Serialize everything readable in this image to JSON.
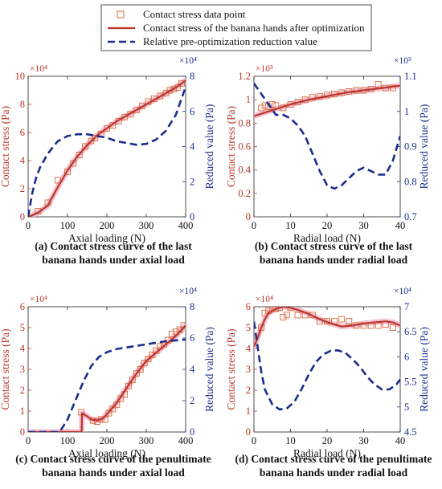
{
  "colors": {
    "stress": "#b8352c",
    "stress_scatter": "#d8653c",
    "highlight": "#f2b3c6",
    "reduced": "#1b2d8c",
    "axis": "#222222"
  },
  "legend": {
    "items": [
      {
        "label": "Contact stress data point",
        "style": "square-marker"
      },
      {
        "label": "Contact stress of the banana hands after optimization",
        "style": "solid-line"
      },
      {
        "label": "Relative pre-optimization reduction value",
        "style": "dashed-line"
      }
    ]
  },
  "chart_data": [
    {
      "id": "a",
      "type": "line",
      "caption_lines": [
        "(a)  Contact stress curve of the last",
        "banana hands under axial load"
      ],
      "xlabel": "Axial loading  (N)",
      "ylabel_left": "Contact stress (Pa)",
      "ylabel_right": "Reduced value (Pa)",
      "exp_left": "×10⁴",
      "exp_right": "×10⁴",
      "xlim": [
        0,
        400
      ],
      "xticks": [
        0,
        100,
        200,
        300,
        400
      ],
      "ylim_left": [
        0,
        10
      ],
      "yticks_left": [
        0,
        2,
        4,
        6,
        8,
        10
      ],
      "ylim_right": [
        0,
        8
      ],
      "yticks_right": [
        0,
        2,
        4,
        6,
        8
      ],
      "scatter": {
        "x": [
          25,
          50,
          75,
          100,
          115,
          130,
          145,
          160,
          170,
          185,
          200,
          215,
          230,
          245,
          260,
          275,
          290,
          305,
          320,
          335,
          350,
          360,
          370,
          380,
          390
        ],
        "y": [
          0.4,
          1.0,
          2.6,
          3.2,
          3.8,
          4.4,
          5.0,
          5.4,
          5.6,
          5.9,
          6.3,
          6.5,
          6.8,
          7.1,
          7.3,
          7.6,
          7.9,
          8.2,
          8.4,
          8.6,
          8.8,
          9.0,
          9.1,
          9.2,
          9.5
        ]
      },
      "stress_curve": {
        "x": [
          0,
          10,
          25,
          50,
          75,
          100,
          125,
          150,
          175,
          200,
          225,
          250,
          275,
          300,
          325,
          350,
          375,
          400
        ],
        "y": [
          0,
          0.1,
          0.3,
          0.8,
          2.1,
          3.3,
          4.3,
          5.1,
          5.8,
          6.3,
          6.8,
          7.2,
          7.6,
          8.0,
          8.4,
          8.8,
          9.2,
          9.7
        ]
      },
      "reduced_curve": {
        "x": [
          0,
          10,
          20,
          30,
          50,
          75,
          100,
          125,
          150,
          175,
          200,
          225,
          250,
          275,
          300,
          325,
          350,
          375,
          400
        ],
        "y": [
          0,
          1.3,
          2.2,
          2.8,
          3.6,
          4.3,
          4.6,
          4.7,
          4.7,
          4.6,
          4.5,
          4.3,
          4.2,
          4.1,
          4.15,
          4.4,
          4.9,
          5.8,
          7.4
        ]
      }
    },
    {
      "id": "b",
      "type": "line",
      "caption_lines": [
        "(b)  Contact stress curve of the last",
        "banana hands under radial load"
      ],
      "xlabel": "Radial load  (N)",
      "ylabel_left": "Contact stress (Pa)",
      "ylabel_right": "Reduced value (Pa)",
      "exp_left": "×10⁵",
      "exp_right": "×10⁵",
      "xlim": [
        0,
        40
      ],
      "xticks": [
        0,
        10,
        20,
        30,
        40
      ],
      "ylim_left": [
        0,
        1.2
      ],
      "yticks_left": [
        0,
        0.2,
        0.4,
        0.6,
        0.8,
        1,
        1.2
      ],
      "ylim_right": [
        0.7,
        1.1
      ],
      "yticks_right": [
        0.7,
        0.8,
        0.9,
        1,
        1.1
      ],
      "scatter": {
        "x": [
          2,
          3,
          4,
          5,
          6,
          8,
          10,
          12,
          14,
          16,
          18,
          20,
          22,
          24,
          26,
          28,
          30,
          32,
          34,
          36,
          38
        ],
        "y": [
          0.93,
          0.95,
          0.94,
          0.96,
          0.95,
          0.93,
          0.96,
          0.98,
          1.0,
          1.02,
          1.03,
          1.04,
          1.05,
          1.06,
          1.07,
          1.08,
          1.08,
          1.09,
          1.13,
          1.1,
          1.1
        ]
      },
      "stress_curve": {
        "x": [
          0,
          5,
          10,
          15,
          20,
          25,
          30,
          35,
          40
        ],
        "y": [
          0.86,
          0.91,
          0.96,
          1.0,
          1.03,
          1.06,
          1.08,
          1.1,
          1.12
        ]
      },
      "reduced_curve": {
        "x": [
          0,
          2,
          4,
          6,
          8,
          10,
          12,
          14,
          16,
          18,
          20,
          22,
          24,
          26,
          28,
          30,
          32,
          34,
          36,
          38,
          40
        ],
        "y": [
          1.08,
          1.05,
          1.02,
          0.99,
          0.99,
          0.98,
          0.96,
          0.93,
          0.88,
          0.83,
          0.79,
          0.78,
          0.79,
          0.81,
          0.83,
          0.84,
          0.83,
          0.82,
          0.82,
          0.86,
          0.93
        ]
      }
    },
    {
      "id": "c",
      "type": "line",
      "caption_lines": [
        "(c)  Contact stress curve of the penultimate",
        "banana hands under axial load"
      ],
      "xlabel": "Axial loading  (N)",
      "ylabel_left": "Contact stress (Pa)",
      "ylabel_right": "Reduced value (Pa)",
      "exp_left": "×10⁴",
      "exp_right": "×10⁴",
      "xlim": [
        0,
        400
      ],
      "xticks": [
        0,
        100,
        200,
        300,
        400
      ],
      "ylim_left": [
        0,
        6
      ],
      "yticks_left": [
        0,
        1,
        2,
        3,
        4,
        5,
        6
      ],
      "ylim_right": [
        0,
        8
      ],
      "yticks_right": [
        0,
        2,
        4,
        6,
        8
      ],
      "scatter": {
        "x": [
          135,
          165,
          175,
          185,
          195,
          205,
          215,
          225,
          235,
          245,
          255,
          265,
          275,
          285,
          295,
          305,
          315,
          325,
          335,
          345,
          355,
          365,
          375,
          385,
          395
        ],
        "y": [
          0.95,
          0.55,
          0.5,
          0.6,
          0.6,
          0.9,
          1.1,
          1.3,
          1.6,
          1.8,
          2.2,
          2.5,
          2.8,
          3.0,
          3.3,
          3.5,
          3.7,
          3.9,
          4.1,
          4.2,
          4.4,
          4.7,
          4.8,
          4.9,
          5.1
        ]
      },
      "stress_curve": {
        "x": [
          0,
          136,
          137,
          150,
          160,
          175,
          190,
          200,
          225,
          250,
          275,
          300,
          325,
          350,
          375,
          400
        ],
        "y": [
          0,
          0,
          0.9,
          0.75,
          0.6,
          0.55,
          0.65,
          0.85,
          1.4,
          2.1,
          2.8,
          3.4,
          3.8,
          4.2,
          4.6,
          5.1
        ]
      },
      "reduced_curve": {
        "x": [
          0,
          80,
          100,
          120,
          140,
          160,
          180,
          200,
          225,
          250,
          275,
          300,
          325,
          350,
          375,
          400
        ],
        "y": [
          0,
          0,
          0.8,
          2.0,
          3.2,
          4.2,
          4.8,
          5.1,
          5.3,
          5.4,
          5.5,
          5.6,
          5.7,
          5.8,
          5.85,
          5.9
        ]
      }
    },
    {
      "id": "d",
      "type": "line",
      "caption_lines": [
        "(d)  Contact stress curve of the penultimate",
        "banana hands under radial load"
      ],
      "xlabel": "Radial load  (N)",
      "ylabel_left": "Contact stress (Pa)",
      "ylabel_right": "Reduced value (Pa)",
      "exp_left": "×10⁴",
      "exp_right": "×10⁴",
      "xlim": [
        0,
        40
      ],
      "xticks": [
        0,
        10,
        20,
        30,
        40
      ],
      "ylim_left": [
        0,
        6
      ],
      "yticks_left": [
        0,
        1,
        2,
        3,
        4,
        5,
        6
      ],
      "ylim_right": [
        4.5,
        7
      ],
      "yticks_right": [
        4.5,
        5,
        5.5,
        6,
        6.5,
        7
      ],
      "scatter": {
        "x": [
          2,
          3,
          4,
          5,
          6,
          7,
          8,
          9,
          10,
          12,
          14,
          16,
          18,
          20,
          22,
          24,
          26,
          28,
          30,
          32,
          34,
          36,
          38
        ],
        "y": [
          5.0,
          5.7,
          5.8,
          5.9,
          5.9,
          5.95,
          5.5,
          5.6,
          5.95,
          5.6,
          5.6,
          5.6,
          5.3,
          5.3,
          5.3,
          5.4,
          5.3,
          5.1,
          5.1,
          5.1,
          5.1,
          5.15,
          5.0
        ]
      },
      "stress_curve": {
        "x": [
          0,
          1,
          2,
          3,
          4,
          6,
          8,
          10,
          12,
          15,
          18,
          21,
          24,
          27,
          30,
          33,
          36,
          38,
          40
        ],
        "y": [
          4.1,
          4.5,
          5.0,
          5.4,
          5.7,
          5.9,
          6.0,
          5.95,
          5.85,
          5.65,
          5.4,
          5.2,
          5.05,
          5.1,
          5.2,
          5.25,
          5.3,
          5.25,
          5.1
        ]
      },
      "reduced_curve": {
        "x": [
          0,
          1,
          2,
          3,
          5,
          7,
          9,
          11,
          13,
          15,
          17,
          19,
          21,
          23,
          25,
          27,
          29,
          31,
          33,
          35,
          37,
          39,
          40
        ],
        "y": [
          6.7,
          6.2,
          5.7,
          5.35,
          5.05,
          4.95,
          4.97,
          5.1,
          5.35,
          5.65,
          5.9,
          6.05,
          6.12,
          6.13,
          6.08,
          5.95,
          5.8,
          5.6,
          5.45,
          5.35,
          5.35,
          5.45,
          5.55
        ]
      }
    }
  ]
}
